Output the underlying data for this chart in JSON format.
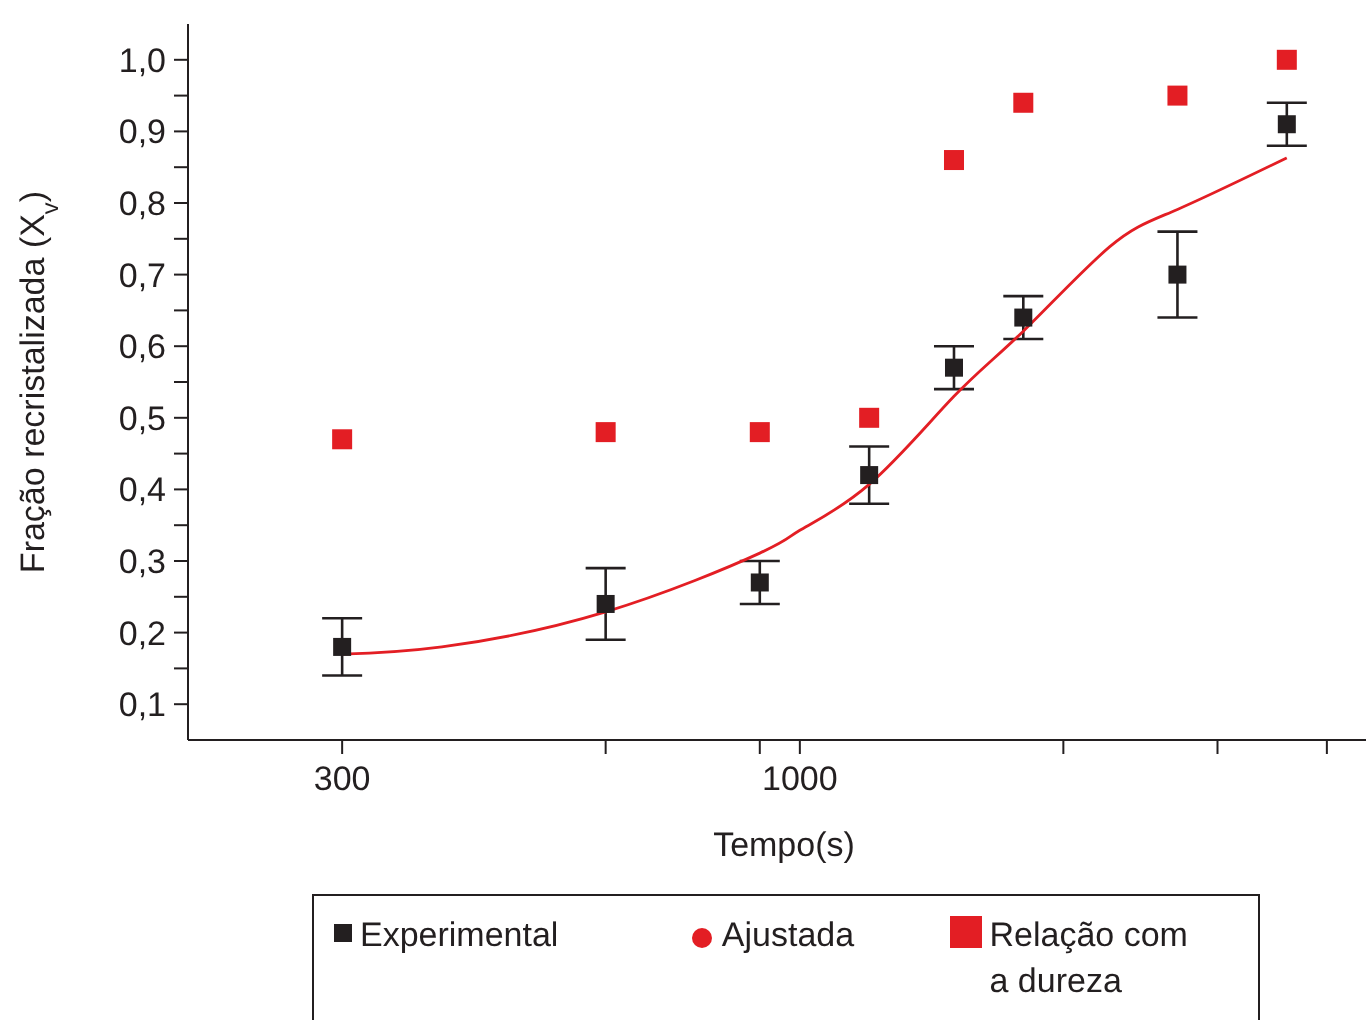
{
  "chart_data": {
    "type": "scatter",
    "xlabel": "Tempo(s)",
    "ylabel": "Fração recristalizada (X$_{v}$)",
    "log": "x",
    "xlim": [
      200,
      4600
    ],
    "xticks": [
      300,
      {
        "value": 600,
        "label": null
      },
      {
        "value": 900,
        "label": null
      },
      1000,
      {
        "value": 2000,
        "label": null
      },
      {
        "value": 3000,
        "label": null
      },
      {
        "value": 4000,
        "label": null
      }
    ],
    "ylim": [
      0.05,
      1.05
    ],
    "yticks": [
      {
        "value": 0.1,
        "label": "0,1"
      },
      {
        "value": 0.15,
        "label": null
      },
      {
        "value": 0.2,
        "label": "0,2"
      },
      {
        "value": 0.25,
        "label": null
      },
      {
        "value": 0.3,
        "label": "0,3"
      },
      {
        "value": 0.35,
        "label": null
      },
      {
        "value": 0.4,
        "label": "0,4"
      },
      {
        "value": 0.45,
        "label": null
      },
      {
        "value": 0.5,
        "label": "0,5"
      },
      {
        "value": 0.55,
        "label": null
      },
      {
        "value": 0.6,
        "label": "0,6"
      },
      {
        "value": 0.65,
        "label": null
      },
      {
        "value": 0.7,
        "label": "0,7"
      },
      {
        "value": 0.75,
        "label": null
      },
      {
        "value": 0.8,
        "label": "0,8"
      },
      {
        "value": 0.85,
        "label": null
      },
      {
        "value": 0.9,
        "label": "0,9"
      },
      {
        "value": 0.95,
        "label": null
      },
      {
        "value": 1.0,
        "label": "1,0"
      }
    ],
    "legend": "bottom",
    "series": [
      {
        "name": "Experimental",
        "marker": "square",
        "color": "#231f20",
        "x": [
          300,
          600,
          900,
          1200,
          1500,
          1800,
          2700,
          3600
        ],
        "values": [
          0.18,
          0.24,
          0.27,
          0.42,
          0.57,
          0.64,
          0.7,
          0.91
        ],
        "errors": [
          [
            0.14,
            0.22
          ],
          [
            0.19,
            0.29
          ],
          [
            0.24,
            0.3
          ],
          [
            0.38,
            0.46
          ],
          [
            0.54,
            0.6
          ],
          [
            0.61,
            0.67
          ],
          [
            0.64,
            0.76
          ],
          [
            0.88,
            0.94
          ]
        ]
      },
      {
        "name": "Ajustada",
        "type": "line",
        "marker": "none",
        "color": "#e31e24",
        "x": [
          300,
          390,
          600,
          900,
          1000,
          1200,
          1500,
          1800,
          2260,
          2700,
          3600
        ],
        "values": [
          0.17,
          0.18,
          0.229,
          0.311,
          0.343,
          0.407,
          0.53,
          0.621,
          0.739,
          0.791,
          0.863
        ]
      },
      {
        "name": "Relação com a dureza",
        "marker": "square",
        "color": "#e31e24",
        "x": [
          300,
          600,
          900,
          1200,
          1500,
          1800,
          2700,
          3600
        ],
        "values": [
          0.47,
          0.48,
          0.48,
          0.5,
          0.86,
          0.94,
          0.95,
          1.0
        ]
      }
    ]
  }
}
